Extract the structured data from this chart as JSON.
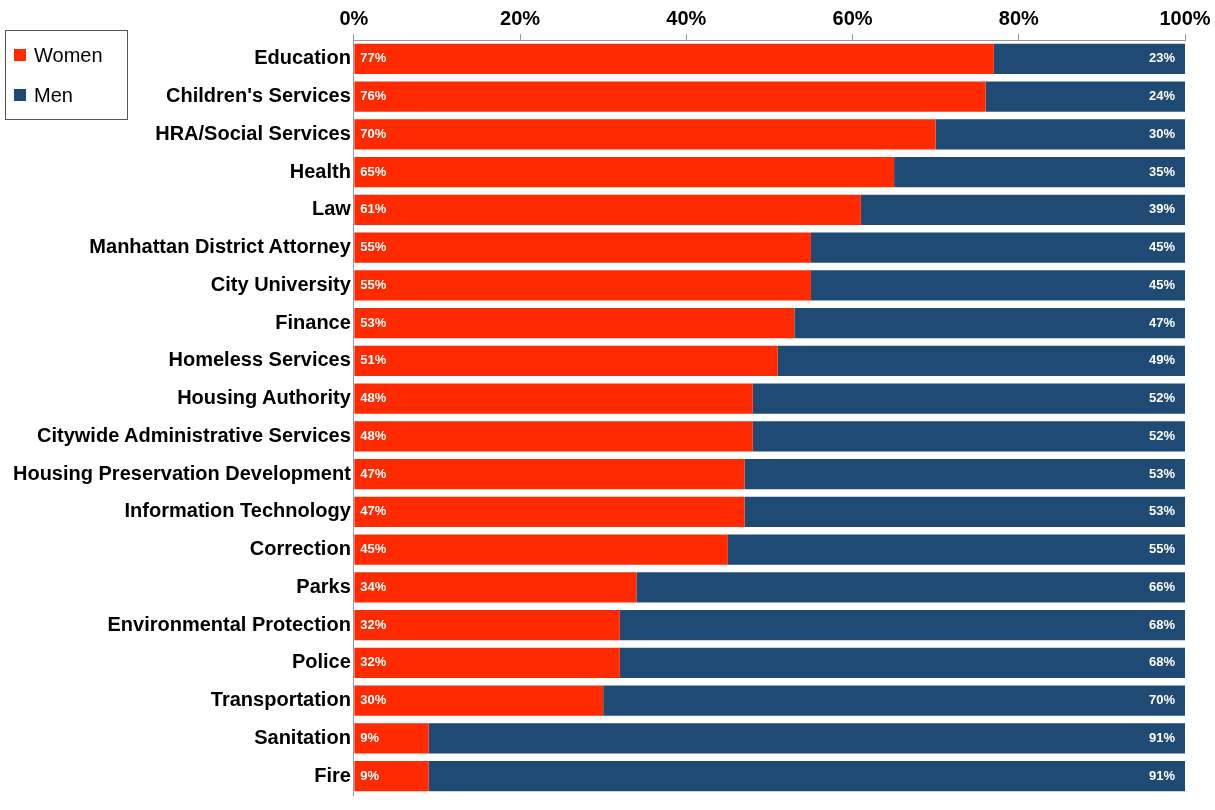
{
  "chart_data": {
    "type": "bar",
    "orientation": "horizontal",
    "stacked": true,
    "categories": [
      "Education",
      "Children's Services",
      "HRA/Social Services",
      "Health",
      "Law",
      "Manhattan District Attorney",
      "City University",
      "Finance",
      "Homeless Services",
      "Housing Authority",
      "Citywide Administrative Services",
      "Housing Preservation Development",
      "Information Technology",
      "Correction",
      "Parks",
      "Environmental Protection",
      "Police",
      "Transportation",
      "Sanitation",
      "Fire"
    ],
    "series": [
      {
        "name": "Women",
        "color": "#ff2a00",
        "values": [
          77,
          76,
          70,
          65,
          61,
          55,
          55,
          53,
          51,
          48,
          48,
          47,
          47,
          45,
          34,
          32,
          32,
          30,
          9,
          9
        ]
      },
      {
        "name": "Men",
        "color": "#1f4a73",
        "values": [
          23,
          24,
          30,
          35,
          39,
          45,
          45,
          47,
          49,
          52,
          52,
          53,
          53,
          55,
          66,
          68,
          68,
          70,
          91,
          91
        ]
      }
    ],
    "xlim": [
      0,
      100
    ],
    "xticks": [
      {
        "value": 0,
        "label": "0%"
      },
      {
        "value": 20,
        "label": "20%"
      },
      {
        "value": 40,
        "label": "40%"
      },
      {
        "value": 60,
        "label": "60%"
      },
      {
        "value": 80,
        "label": "80%"
      },
      {
        "value": 100,
        "label": "100%"
      }
    ],
    "value_labels": [
      [
        "77%",
        "76%",
        "70%",
        "65%",
        "61%",
        "55%",
        "55%",
        "53%",
        "51%",
        "48%",
        "48%",
        "47%",
        "47%",
        "45%",
        "34%",
        "32%",
        "32%",
        "30%",
        "9%",
        "9%"
      ],
      [
        "23%",
        "24%",
        "30%",
        "35%",
        "39%",
        "45%",
        "45%",
        "47%",
        "49%",
        "52%",
        "52%",
        "53%",
        "53%",
        "55%",
        "66%",
        "68%",
        "68%",
        "70%",
        "91%",
        "91%"
      ]
    ],
    "grid": false,
    "legend": "top left"
  }
}
